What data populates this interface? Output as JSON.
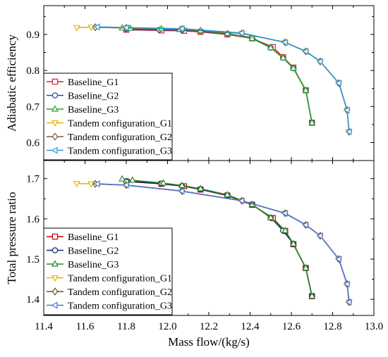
{
  "chart_data": [
    {
      "type": "line",
      "ylabel": "Adiabatic efficiency",
      "xlim": [
        11.4,
        13.0
      ],
      "ylim": [
        0.55,
        0.98
      ],
      "yticks": [
        0.6,
        0.7,
        0.8,
        0.9
      ],
      "ytick_labels": [
        "0.6",
        "0.7",
        "0.8",
        "0.9"
      ],
      "grid": false,
      "legend_position": "bottom-left",
      "series": [
        {
          "name": "Baseline_G1",
          "color": "#d62728",
          "marker": "square",
          "x": [
            11.8,
            11.97,
            12.08,
            12.16,
            12.29,
            12.41,
            12.51,
            12.56,
            12.61,
            12.67,
            12.7
          ],
          "y": [
            0.913,
            0.911,
            0.91,
            0.907,
            0.9,
            0.889,
            0.865,
            0.837,
            0.808,
            0.745,
            0.655
          ]
        },
        {
          "name": "Baseline_G2",
          "color": "#1f4e9c",
          "marker": "circle",
          "x": [
            11.8,
            11.96,
            12.07,
            12.16,
            12.29,
            12.41,
            12.5,
            12.56,
            12.61,
            12.67,
            12.7
          ],
          "y": [
            0.915,
            0.913,
            0.912,
            0.909,
            0.902,
            0.891,
            0.863,
            0.835,
            0.806,
            0.745,
            0.655
          ]
        },
        {
          "name": "Baseline_G3",
          "color": "#2ca02c",
          "marker": "triangle-up",
          "x": [
            11.78,
            11.82,
            11.97,
            12.06,
            12.16,
            12.29,
            12.41,
            12.5,
            12.56,
            12.61,
            12.67,
            12.7
          ],
          "y": [
            0.918,
            0.917,
            0.916,
            0.914,
            0.911,
            0.903,
            0.889,
            0.863,
            0.835,
            0.806,
            0.745,
            0.655
          ]
        },
        {
          "name": "Tandem configuration_G1",
          "color": "#e5b700",
          "marker": "triangle-down",
          "x": [
            11.56,
            11.63,
            11.8,
            12.07,
            12.36,
            12.57,
            12.67,
            12.74,
            12.83,
            12.87,
            12.88
          ],
          "y": [
            0.919,
            0.92,
            0.918,
            0.915,
            0.903,
            0.878,
            0.853,
            0.825,
            0.765,
            0.69,
            0.63
          ]
        },
        {
          "name": "Tandem configuration_G2",
          "color": "#7b5a35",
          "marker": "diamond",
          "x": [
            11.65,
            11.8,
            12.07,
            12.36,
            12.57,
            12.67,
            12.74,
            12.83,
            12.87,
            12.88
          ],
          "y": [
            0.92,
            0.918,
            0.915,
            0.903,
            0.878,
            0.853,
            0.825,
            0.765,
            0.69,
            0.63
          ]
        },
        {
          "name": "Tandem configuration_G3",
          "color": "#2f9ad6",
          "marker": "triangle-left",
          "x": [
            11.66,
            11.8,
            12.07,
            12.36,
            12.57,
            12.67,
            12.74,
            12.83,
            12.87,
            12.88
          ],
          "y": [
            0.921,
            0.919,
            0.916,
            0.904,
            0.878,
            0.853,
            0.825,
            0.765,
            0.69,
            0.63
          ]
        }
      ]
    },
    {
      "type": "line",
      "xlabel": "Mass flow/(kg/s)",
      "ylabel": "Total pressure ratio",
      "xlim": [
        11.4,
        13.0
      ],
      "ylim": [
        1.36,
        1.745
      ],
      "xticks": [
        11.4,
        11.6,
        11.8,
        12.0,
        12.2,
        12.4,
        12.6,
        12.8,
        13.0
      ],
      "xtick_labels": [
        "11.4",
        "11.6",
        "11.8",
        "12.0",
        "12.2",
        "12.4",
        "12.6",
        "12.8",
        "13.0"
      ],
      "yticks": [
        1.4,
        1.5,
        1.6,
        1.7
      ],
      "ytick_labels": [
        "1.4",
        "1.5",
        "1.6",
        "1.7"
      ],
      "grid": false,
      "legend_position": "bottom-left",
      "series": [
        {
          "name": "Baseline_G1",
          "color": "#c00000",
          "marker": "square",
          "x": [
            11.8,
            11.97,
            12.08,
            12.16,
            12.29,
            12.41,
            12.51,
            12.57,
            12.61,
            12.67,
            12.7
          ],
          "y": [
            1.693,
            1.687,
            1.681,
            1.673,
            1.658,
            1.635,
            1.602,
            1.57,
            1.537,
            1.478,
            1.408
          ]
        },
        {
          "name": "Baseline_G2",
          "color": "#0d2a66",
          "marker": "circle",
          "x": [
            11.8,
            11.97,
            12.07,
            12.16,
            12.29,
            12.41,
            12.5,
            12.56,
            12.61,
            12.67,
            12.7
          ],
          "y": [
            1.694,
            1.688,
            1.682,
            1.674,
            1.659,
            1.636,
            1.603,
            1.571,
            1.538,
            1.478,
            1.408
          ]
        },
        {
          "name": "Baseline_G3",
          "color": "#2a8a2a",
          "marker": "triangle-up",
          "x": [
            11.78,
            11.83,
            11.98,
            12.07,
            12.16,
            12.29,
            12.41,
            12.5,
            12.57,
            12.61,
            12.67,
            12.7
          ],
          "y": [
            1.699,
            1.696,
            1.689,
            1.683,
            1.675,
            1.66,
            1.636,
            1.603,
            1.571,
            1.538,
            1.478,
            1.408
          ]
        },
        {
          "name": "Tandem configuration_G1",
          "color": "#e5b700",
          "marker": "triangle-down",
          "x": [
            11.56,
            11.63,
            11.8,
            12.07,
            12.36,
            12.57,
            12.67,
            12.74,
            12.83,
            12.87,
            12.88
          ],
          "y": [
            1.688,
            1.687,
            1.684,
            1.669,
            1.645,
            1.614,
            1.585,
            1.558,
            1.5,
            1.438,
            1.393
          ]
        },
        {
          "name": "Tandem configuration_G2",
          "color": "#6b4f2c",
          "marker": "diamond",
          "x": [
            11.65,
            11.8,
            12.07,
            12.36,
            12.57,
            12.67,
            12.74,
            12.83,
            12.87,
            12.88
          ],
          "y": [
            1.687,
            1.684,
            1.669,
            1.645,
            1.614,
            1.585,
            1.558,
            1.5,
            1.438,
            1.393
          ]
        },
        {
          "name": "Tandem configuration_G3",
          "color": "#4a78d6",
          "marker": "triangle-left",
          "x": [
            11.66,
            11.8,
            12.07,
            12.36,
            12.57,
            12.67,
            12.74,
            12.83,
            12.87,
            12.88
          ],
          "y": [
            1.687,
            1.684,
            1.669,
            1.645,
            1.614,
            1.585,
            1.558,
            1.5,
            1.438,
            1.393
          ]
        }
      ]
    }
  ]
}
